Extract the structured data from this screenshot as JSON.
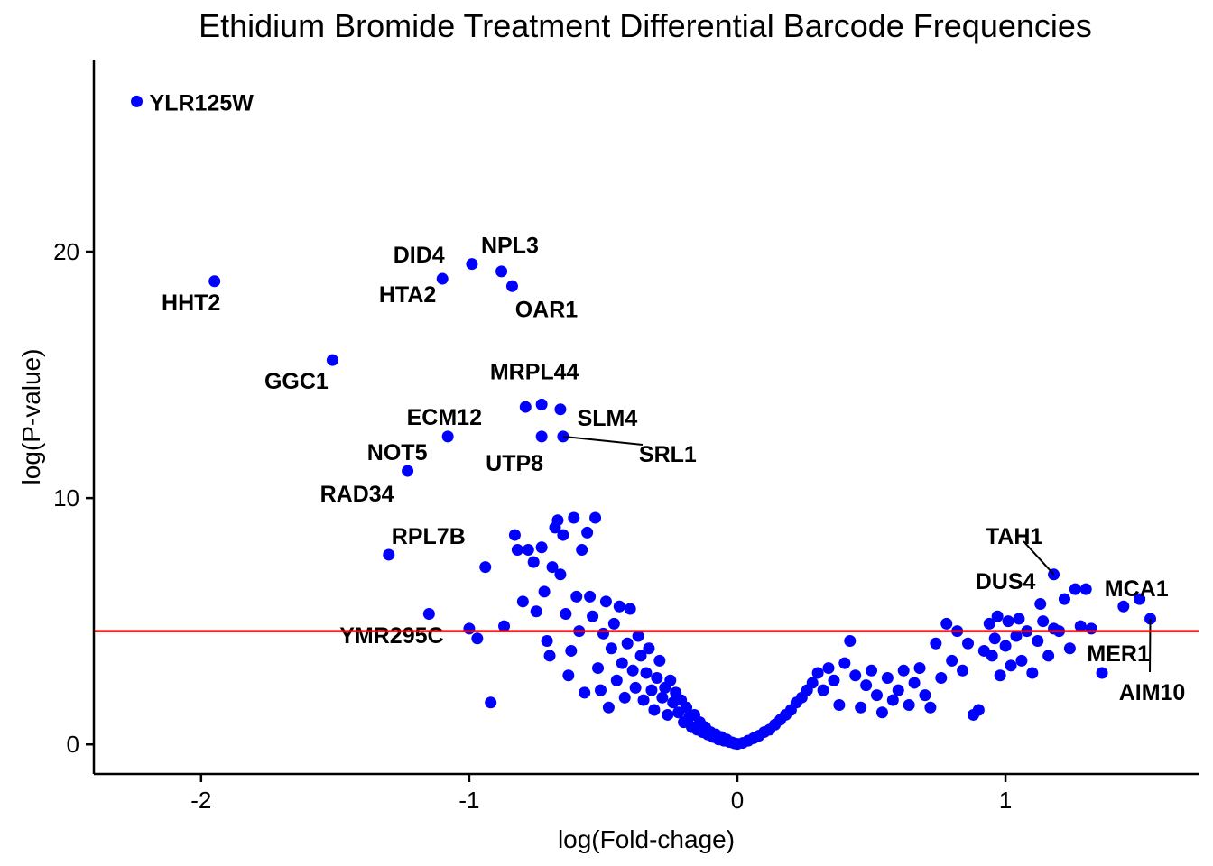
{
  "chart_data": {
    "type": "scatter",
    "title": "Ethidium Bromide Treatment Differential Barcode Frequencies",
    "xlabel": "log(Fold-chage)",
    "ylabel": "log(P-value)",
    "xlim": [
      -2.4,
      1.72
    ],
    "ylim": [
      -1.2,
      27.8
    ],
    "x_ticks": [
      -2,
      -1,
      0,
      1
    ],
    "x_tick_labels": [
      "-2",
      "-1",
      "0",
      "1"
    ],
    "y_ticks": [
      0,
      10,
      20
    ],
    "y_tick_labels": [
      "0",
      "10",
      "20"
    ],
    "grid": false,
    "legend": "none",
    "point_color": "#0000ff",
    "threshold_line": {
      "y": 4.6,
      "color": "#ff0000"
    },
    "labeled_points": [
      {
        "label": "YLR125W",
        "x": -2.24,
        "y": 26.1
      },
      {
        "label": "HHT2",
        "x": -1.95,
        "y": 18.8
      },
      {
        "label": "DID4",
        "x": -1.1,
        "y": 18.9
      },
      {
        "label": "NPL3",
        "x": -0.99,
        "y": 19.5
      },
      {
        "label": "HTA2",
        "x": -0.88,
        "y": 19.2
      },
      {
        "label": "OAR1",
        "x": -0.84,
        "y": 18.6
      },
      {
        "label": "GGC1",
        "x": -1.51,
        "y": 15.6
      },
      {
        "label": "MRPL44",
        "x": -0.73,
        "y": 13.8
      },
      {
        "label": "ECM12",
        "x": -0.79,
        "y": 13.7
      },
      {
        "label": "SLM4",
        "x": -0.66,
        "y": 13.6
      },
      {
        "label": "NOT5",
        "x": -1.08,
        "y": 12.5
      },
      {
        "label": "UTP8",
        "x": -0.73,
        "y": 12.5
      },
      {
        "label": "SRL1",
        "x": -0.65,
        "y": 12.5
      },
      {
        "label": "RAD34",
        "x": -1.23,
        "y": 11.1
      },
      {
        "label": "RPL7B",
        "x": -1.3,
        "y": 7.7
      },
      {
        "label": "YMR295C",
        "x": -1.0,
        "y": 4.7
      },
      {
        "label": "TAH1",
        "x": 1.18,
        "y": 6.9
      },
      {
        "label": "MCA1",
        "x": 1.3,
        "y": 6.3
      },
      {
        "label": "DUS4",
        "x": 1.13,
        "y": 5.7
      },
      {
        "label": "MER1",
        "x": 1.32,
        "y": 4.7
      },
      {
        "label": "AIM10",
        "x": 1.54,
        "y": 5.1
      }
    ],
    "points": [
      [
        -1.15,
        5.3
      ],
      [
        -0.97,
        4.3
      ],
      [
        -0.94,
        7.2
      ],
      [
        -0.92,
        1.7
      ],
      [
        -0.87,
        4.8
      ],
      [
        -0.83,
        8.5
      ],
      [
        -0.82,
        7.9
      ],
      [
        -0.8,
        5.8
      ],
      [
        -0.78,
        7.9
      ],
      [
        -0.76,
        7.4
      ],
      [
        -0.75,
        5.4
      ],
      [
        -0.73,
        8.0
      ],
      [
        -0.72,
        6.2
      ],
      [
        -0.71,
        4.2
      ],
      [
        -0.7,
        3.6
      ],
      [
        -0.69,
        7.2
      ],
      [
        -0.68,
        8.8
      ],
      [
        -0.67,
        9.1
      ],
      [
        -0.66,
        6.9
      ],
      [
        -0.65,
        8.5
      ],
      [
        -0.64,
        5.3
      ],
      [
        -0.63,
        2.8
      ],
      [
        -0.62,
        3.8
      ],
      [
        -0.61,
        9.2
      ],
      [
        -0.6,
        6.0
      ],
      [
        -0.59,
        4.6
      ],
      [
        -0.58,
        7.9
      ],
      [
        -0.57,
        2.1
      ],
      [
        -0.56,
        8.6
      ],
      [
        -0.55,
        6.0
      ],
      [
        -0.54,
        5.2
      ],
      [
        -0.53,
        9.2
      ],
      [
        -0.52,
        3.1
      ],
      [
        -0.51,
        2.2
      ],
      [
        -0.5,
        4.5
      ],
      [
        -0.49,
        5.8
      ],
      [
        -0.48,
        1.5
      ],
      [
        -0.47,
        3.9
      ],
      [
        -0.46,
        4.9
      ],
      [
        -0.45,
        2.6
      ],
      [
        -0.44,
        5.6
      ],
      [
        -0.43,
        3.3
      ],
      [
        -0.42,
        1.9
      ],
      [
        -0.41,
        4.1
      ],
      [
        -0.4,
        5.5
      ],
      [
        -0.39,
        3.0
      ],
      [
        -0.38,
        2.3
      ],
      [
        -0.37,
        4.4
      ],
      [
        -0.36,
        3.6
      ],
      [
        -0.35,
        1.8
      ],
      [
        -0.34,
        2.9
      ],
      [
        -0.33,
        3.9
      ],
      [
        -0.32,
        2.2
      ],
      [
        -0.31,
        1.4
      ],
      [
        -0.3,
        2.7
      ],
      [
        -0.29,
        3.4
      ],
      [
        -0.28,
        1.9
      ],
      [
        -0.27,
        2.3
      ],
      [
        -0.26,
        1.2
      ],
      [
        -0.25,
        2.6
      ],
      [
        -0.24,
        1.7
      ],
      [
        -0.23,
        2.1
      ],
      [
        -0.22,
        1.3
      ],
      [
        -0.21,
        1.8
      ],
      [
        -0.2,
        0.9
      ],
      [
        -0.19,
        1.5
      ],
      [
        -0.18,
        1.1
      ],
      [
        -0.17,
        0.7
      ],
      [
        -0.16,
        1.2
      ],
      [
        -0.15,
        0.6
      ],
      [
        -0.14,
        0.9
      ],
      [
        -0.13,
        0.5
      ],
      [
        -0.12,
        0.7
      ],
      [
        -0.11,
        0.4
      ],
      [
        -0.1,
        0.5
      ],
      [
        -0.09,
        0.3
      ],
      [
        -0.08,
        0.4
      ],
      [
        -0.07,
        0.2
      ],
      [
        -0.06,
        0.3
      ],
      [
        -0.05,
        0.15
      ],
      [
        -0.04,
        0.2
      ],
      [
        -0.03,
        0.1
      ],
      [
        -0.02,
        0.08
      ],
      [
        -0.01,
        0.04
      ],
      [
        0.0,
        0.02
      ],
      [
        0.02,
        0.06
      ],
      [
        0.04,
        0.15
      ],
      [
        0.06,
        0.25
      ],
      [
        0.08,
        0.35
      ],
      [
        0.1,
        0.5
      ],
      [
        0.12,
        0.6
      ],
      [
        0.14,
        0.8
      ],
      [
        0.16,
        1.0
      ],
      [
        0.18,
        1.2
      ],
      [
        0.2,
        1.4
      ],
      [
        0.22,
        1.7
      ],
      [
        0.24,
        1.9
      ],
      [
        0.26,
        2.2
      ],
      [
        0.28,
        2.5
      ],
      [
        0.3,
        2.9
      ],
      [
        0.32,
        2.2
      ],
      [
        0.34,
        3.1
      ],
      [
        0.36,
        2.6
      ],
      [
        0.38,
        1.6
      ],
      [
        0.4,
        3.3
      ],
      [
        0.42,
        4.2
      ],
      [
        0.44,
        2.8
      ],
      [
        0.46,
        1.5
      ],
      [
        0.48,
        2.4
      ],
      [
        0.5,
        3.0
      ],
      [
        0.52,
        2.0
      ],
      [
        0.54,
        1.3
      ],
      [
        0.56,
        2.7
      ],
      [
        0.58,
        1.8
      ],
      [
        0.6,
        2.2
      ],
      [
        0.62,
        3.0
      ],
      [
        0.64,
        1.6
      ],
      [
        0.66,
        2.5
      ],
      [
        0.68,
        3.1
      ],
      [
        0.7,
        2.0
      ],
      [
        0.72,
        1.5
      ],
      [
        0.74,
        4.1
      ],
      [
        0.76,
        2.7
      ],
      [
        0.78,
        4.9
      ],
      [
        0.8,
        3.4
      ],
      [
        0.82,
        4.6
      ],
      [
        0.84,
        3.0
      ],
      [
        0.86,
        4.1
      ],
      [
        0.88,
        1.2
      ],
      [
        0.9,
        1.4
      ],
      [
        0.92,
        3.8
      ],
      [
        0.94,
        4.9
      ],
      [
        0.95,
        3.6
      ],
      [
        0.96,
        4.3
      ],
      [
        0.97,
        5.2
      ],
      [
        0.98,
        2.8
      ],
      [
        1.0,
        4.0
      ],
      [
        1.01,
        5.0
      ],
      [
        1.02,
        3.2
      ],
      [
        1.04,
        4.4
      ],
      [
        1.05,
        5.1
      ],
      [
        1.06,
        3.4
      ],
      [
        1.08,
        4.6
      ],
      [
        1.1,
        2.9
      ],
      [
        1.12,
        4.2
      ],
      [
        1.14,
        5.0
      ],
      [
        1.16,
        3.6
      ],
      [
        1.18,
        4.7
      ],
      [
        1.2,
        4.6
      ],
      [
        1.22,
        5.9
      ],
      [
        1.24,
        3.9
      ],
      [
        1.26,
        6.3
      ],
      [
        1.28,
        4.8
      ],
      [
        1.36,
        2.9
      ],
      [
        1.44,
        5.6
      ],
      [
        1.5,
        5.9
      ]
    ]
  }
}
